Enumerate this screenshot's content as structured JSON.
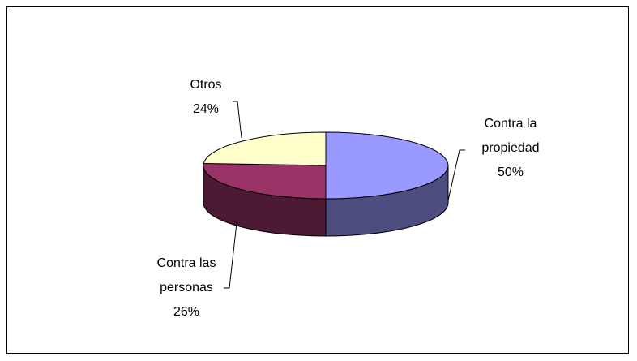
{
  "chart_data": {
    "type": "pie",
    "style": "3d",
    "title": "",
    "legend": "none",
    "slices": [
      {
        "name": "Contra la propiedad",
        "label_lines": [
          "Contra la",
          "propiedad"
        ],
        "value": 50,
        "value_label": "50%",
        "color": "#9999FF",
        "side_color": "#4D4D80"
      },
      {
        "name": "Contra las personas",
        "label_lines": [
          "Contra las",
          "personas"
        ],
        "value": 26,
        "value_label": "26%",
        "color": "#993366",
        "side_color": "#4D1A33"
      },
      {
        "name": "Otros",
        "label_lines": [
          "Otros"
        ],
        "value": 24,
        "value_label": "24%",
        "color": "#FFFFCC",
        "side_color": "#808066"
      }
    ]
  },
  "colors": {
    "outline": "#000000",
    "background": "#FFFFFF"
  }
}
